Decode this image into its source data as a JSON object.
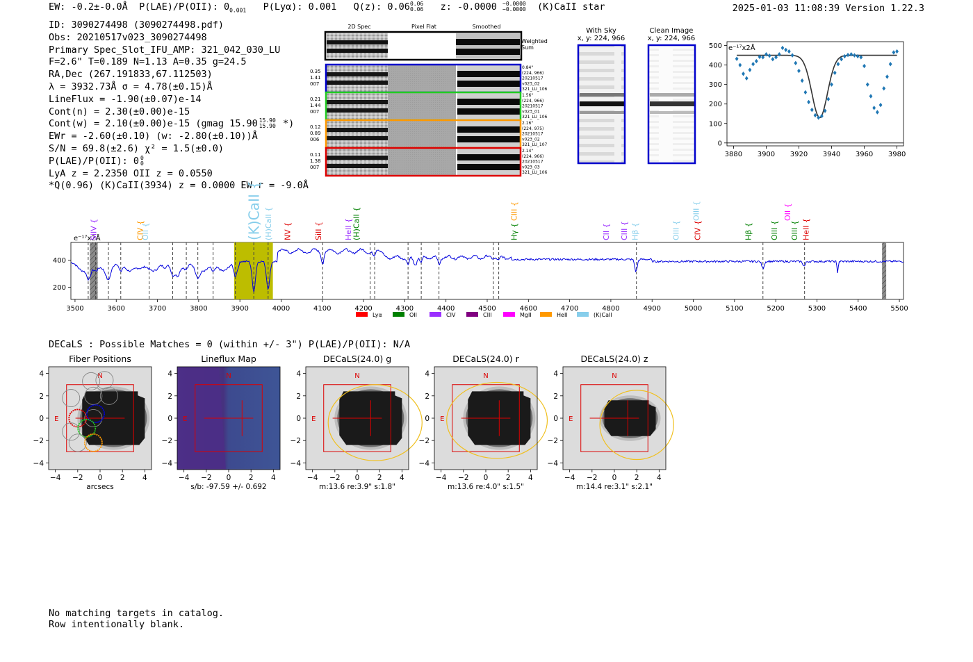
{
  "header": {
    "line_parts": [
      "EW: -0.2±-0.0Å",
      "P(LAE)/P(OII): 0",
      "0.001",
      "P(Lyα): 0.001",
      "Q(z): 0.06",
      "0.06",
      "0.06",
      "z: -0.0000",
      "−0.0000",
      "−0.0000",
      "(K)CaII  star"
    ],
    "timestamp": "2025-01-03 11:08:39  Version 1.22.3"
  },
  "info": {
    "lines": [
      "ID: 3090274498 (3090274498.pdf)",
      "Obs: 20210517v023_3090274498",
      "Primary Spec_Slot_IFU_AMP: 321_042_030_LU",
      "F=2.6\"  T=0.189  N=1.13  A=0.35  g=24.5",
      "RA,Dec (267.191833,67.112503)",
      "λ = 3932.73Å  σ = 4.78(±0.15)Å",
      "LineFlux = -1.90(±0.07)e-14",
      "Cont(n) = 2.30(±0.00)e-15",
      "Cont(w) = 2.10(±0.00)e-15 (gmag 15.90",
      "EWr = -2.60(±0.10) (w: -2.80(±0.10))Å",
      "S/N = 69.8(±2.6)  χ² = 1.5(±0.0)",
      "P(LAE)/P(OII): 0",
      "LyA z = 2.2350  OII z = 0.0550",
      "*Q(0.96) (K)CaII(3934) z = 0.0000  EW r = -9.0Å"
    ],
    "gmag_sup": "15.90",
    "gmag_sub": "15.90",
    "gmag_close": "*)",
    "plae_sup": "0",
    "plae_sub": "0"
  },
  "cutouts": {
    "col_titles": [
      "2D Spec",
      "Pixel Flat",
      "Smoothed"
    ],
    "weighted_label": [
      "Weighted",
      "Sum"
    ],
    "rows": [
      {
        "color": "#0000cc",
        "left": [
          "0.35",
          "1.41",
          "007"
        ],
        "right": [
          "0.84\"",
          "(224, 966)",
          "20210517",
          "v023_02",
          "321_LU_106"
        ]
      },
      {
        "color": "#22cc22",
        "left": [
          "0.21",
          "1.44",
          "007"
        ],
        "right": [
          "1.56\"",
          "(224, 966)",
          "20210517",
          "v023_01",
          "321_LU_106"
        ]
      },
      {
        "color": "#ff9900",
        "left": [
          "0.12",
          "0.89",
          "006"
        ],
        "right": [
          "2.16\"",
          "(224, 975)",
          "20210517",
          "v023_02",
          "321_LU_107"
        ]
      },
      {
        "color": "#dd0000",
        "left": [
          "0.11",
          "1.38",
          "007"
        ],
        "right": [
          "2.14\"",
          "(224, 966)",
          "20210517",
          "v023_03",
          "321_LU_106"
        ]
      }
    ],
    "with_sky": {
      "title": "With Sky",
      "coords": "x, y: 224, 966"
    },
    "clean_image": {
      "title": "Clean Image",
      "coords": "x, y: 224, 966"
    }
  },
  "chart_data": [
    {
      "type": "scatter",
      "name": "line-fit-zoom",
      "ylabel": "e⁻¹⁷x2Å",
      "xlim": [
        3876,
        3984
      ],
      "ylim": [
        -15,
        520
      ],
      "xticks": [
        3880,
        3900,
        3920,
        3940,
        3960,
        3980
      ],
      "yticks": [
        0,
        100,
        200,
        300,
        400,
        500
      ],
      "points": [
        [
          3882,
          432
        ],
        [
          3884,
          400
        ],
        [
          3886,
          355
        ],
        [
          3888,
          332
        ],
        [
          3890,
          375
        ],
        [
          3892,
          405
        ],
        [
          3894,
          420
        ],
        [
          3896,
          442
        ],
        [
          3898,
          440
        ],
        [
          3900,
          455
        ],
        [
          3902,
          448
        ],
        [
          3904,
          430
        ],
        [
          3906,
          440
        ],
        [
          3908,
          455
        ],
        [
          3910,
          488
        ],
        [
          3912,
          478
        ],
        [
          3914,
          470
        ],
        [
          3916,
          450
        ],
        [
          3918,
          410
        ],
        [
          3920,
          370
        ],
        [
          3922,
          320
        ],
        [
          3924,
          260
        ],
        [
          3926,
          210
        ],
        [
          3928,
          170
        ],
        [
          3930,
          142
        ],
        [
          3932,
          130
        ],
        [
          3934,
          138
        ],
        [
          3936,
          165
        ],
        [
          3938,
          225
        ],
        [
          3940,
          300
        ],
        [
          3942,
          360
        ],
        [
          3944,
          405
        ],
        [
          3946,
          430
        ],
        [
          3948,
          445
        ],
        [
          3950,
          452
        ],
        [
          3952,
          455
        ],
        [
          3954,
          450
        ],
        [
          3956,
          445
        ],
        [
          3958,
          440
        ],
        [
          3960,
          395
        ],
        [
          3962,
          300
        ],
        [
          3964,
          240
        ],
        [
          3966,
          180
        ],
        [
          3968,
          158
        ],
        [
          3970,
          195
        ],
        [
          3972,
          280
        ],
        [
          3974,
          340
        ],
        [
          3976,
          405
        ],
        [
          3978,
          465
        ],
        [
          3980,
          470
        ]
      ],
      "fit": {
        "continuum": 450,
        "center": 3932.73,
        "sigma": 4.78,
        "amplitude": -320
      }
    },
    {
      "type": "line",
      "name": "full-spectrum",
      "ylabel": "e⁻¹⁷x2Å",
      "xlim": [
        3490,
        5510
      ],
      "ylim": [
        110,
        530
      ],
      "xticks": [
        3500,
        3600,
        3700,
        3800,
        3900,
        4000,
        4100,
        4200,
        4300,
        4400,
        4500,
        4600,
        4700,
        4800,
        4900,
        5000,
        5100,
        5200,
        5300,
        5400,
        5500
      ],
      "yticks": [
        200,
        400
      ],
      "continuum": 390,
      "highlight_band": [
        3886,
        3980
      ],
      "absorptions": [
        [
          3534,
          -90,
          5
        ],
        [
          3550,
          -60,
          6
        ],
        [
          3581,
          -70,
          5
        ],
        [
          3610,
          -60,
          4
        ],
        [
          3660,
          -40,
          8
        ],
        [
          3718,
          -35,
          5
        ],
        [
          3737,
          -50,
          4
        ],
        [
          3749,
          -40,
          4
        ],
        [
          3770,
          -45,
          5
        ],
        [
          3798,
          -55,
          5
        ],
        [
          3820,
          -30,
          6
        ],
        [
          3835,
          -60,
          5
        ],
        [
          3889,
          -100,
          4
        ],
        [
          3933.7,
          -220,
          4
        ],
        [
          3968.5,
          -200,
          4
        ],
        [
          4101,
          -80,
          3
        ],
        [
          4226,
          -40,
          3
        ],
        [
          4308,
          -60,
          3
        ],
        [
          4325,
          -50,
          4
        ],
        [
          4340,
          -45,
          3
        ],
        [
          4383,
          -50,
          3
        ],
        [
          4528,
          -30,
          3
        ],
        [
          4861,
          -90,
          3
        ],
        [
          5169,
          -50,
          3
        ],
        [
          5269,
          -35,
          3
        ],
        [
          5350,
          -80,
          1.5
        ]
      ],
      "dashed_lines": [
        3532,
        3550,
        3581,
        3611,
        3680,
        3737,
        3770,
        3798,
        3835,
        3889,
        3933.7,
        3968.5,
        4101,
        4216,
        4227,
        4308,
        4340,
        4383,
        4515,
        4528,
        4862,
        5169,
        5270
      ],
      "hatched_regions": [
        [
          3536,
          3555
        ],
        [
          5458,
          5468
        ]
      ],
      "line_labels": [
        {
          "text": "SiIV {",
          "x": 3545,
          "color": "#9b30ff",
          "size": 11,
          "row": 2
        },
        {
          "text": "CIV {",
          "x": 3658,
          "color": "#ff9900",
          "size": 11,
          "row": 3
        },
        {
          "text": "OII {",
          "x": 3670,
          "color": "#87ceeb",
          "size": 11,
          "row": 3
        },
        {
          "text": "(K)CaII {",
          "x": 3934,
          "color": "#87ceeb",
          "size": 20,
          "row": 0
        },
        {
          "text": "(H)CaII {",
          "x": 3969,
          "color": "#87ceeb",
          "size": 11,
          "row": 2
        },
        {
          "text": "NV {",
          "x": 4015,
          "color": "#dd0000",
          "size": 11,
          "row": 2
        },
        {
          "text": "SiII {",
          "x": 4090,
          "color": "#dd0000",
          "size": 11,
          "row": 3
        },
        {
          "text": "HeII {",
          "x": 4163,
          "color": "#9b30ff",
          "size": 11,
          "row": 3
        },
        {
          "text": "(H)CaII {",
          "x": 4182,
          "color": "#008000",
          "size": 11,
          "row": 3
        },
        {
          "text": "CIII {",
          "x": 4565,
          "color": "#ff9900",
          "size": 11,
          "row": 1
        },
        {
          "text": "Hγ {",
          "x": 4565,
          "color": "#008000",
          "size": 11,
          "row": 4
        },
        {
          "text": "CII {",
          "x": 4788,
          "color": "#9b30ff",
          "size": 11,
          "row": 3
        },
        {
          "text": "CIII {",
          "x": 4832,
          "color": "#9b30ff",
          "size": 11,
          "row": 3
        },
        {
          "text": "Hβ {",
          "x": 4858,
          "color": "#87ceeb",
          "size": 11,
          "row": 3
        },
        {
          "text": "OIII {",
          "x": 4958,
          "color": "#87ceeb",
          "size": 11,
          "row": 3
        },
        {
          "text": "OIII {",
          "x": 5007,
          "color": "#87ceeb",
          "size": 11,
          "row": 1
        },
        {
          "text": "CIV {",
          "x": 5010,
          "color": "#dd0000",
          "size": 11,
          "row": 3
        },
        {
          "text": "Hβ {",
          "x": 5133,
          "color": "#008000",
          "size": 11,
          "row": 3
        },
        {
          "text": "OIII {",
          "x": 5196,
          "color": "#008000",
          "size": 11,
          "row": 3
        },
        {
          "text": "OII {",
          "x": 5228,
          "color": "#ff00ff",
          "size": 11,
          "row": 1
        },
        {
          "text": "OIII {",
          "x": 5245,
          "color": "#008000",
          "size": 11,
          "row": 3
        },
        {
          "text": "HeII {",
          "x": 5273,
          "color": "#dd0000",
          "size": 11,
          "row": 3
        }
      ],
      "legend": [
        {
          "label": "Lyα",
          "color": "#ff0000"
        },
        {
          "label": "OII",
          "color": "#008000"
        },
        {
          "label": "CIV",
          "color": "#9b30ff"
        },
        {
          "label": "CIII",
          "color": "#800080"
        },
        {
          "label": "MgII",
          "color": "#ff00ff"
        },
        {
          "label": "HeII",
          "color": "#ff9900"
        },
        {
          "label": "(K)CaII",
          "color": "#87ceeb"
        }
      ]
    }
  ],
  "decals": {
    "summary": "DECaLS : Possible Matches = 0 (within +/- 3\")  P(LAE)/P(OII): N/A",
    "panels": [
      {
        "title": "Fiber Positions",
        "xlabel": "arcsecs",
        "type": "fiber"
      },
      {
        "title": "Lineflux Map",
        "xlabel": "s/b: -97.59 +/- 0.692",
        "type": "lineflux"
      },
      {
        "title": "DECaLS(24.0) g",
        "xlabel": "m:13.6  re:3.9\"  s:1.8\"",
        "type": "decals",
        "ellipse": {
          "cx": 1.6,
          "cy": -0.4,
          "rx": 4.2,
          "ry": 3.4
        }
      },
      {
        "title": "DECaLS(24.0) r",
        "xlabel": "m:13.6  re:4.0\"  s:1.5\"",
        "type": "decals",
        "ellipse": {
          "cx": 1.0,
          "cy": -0.2,
          "rx": 4.5,
          "ry": 3.4
        }
      },
      {
        "title": "DECaLS(24.0) z",
        "xlabel": "m:14.4  re:3.1\"  s:2.1\"",
        "type": "decals_small",
        "ellipse": {
          "cx": 2.0,
          "cy": -0.6,
          "rx": 3.3,
          "ry": 3.1
        }
      }
    ],
    "ticks": [
      -4,
      -2,
      0,
      2,
      4
    ],
    "north_label": "N",
    "east_label": "E"
  },
  "footer": {
    "line1": "No matching targets in catalog.",
    "line2": "Row intentionally blank."
  }
}
